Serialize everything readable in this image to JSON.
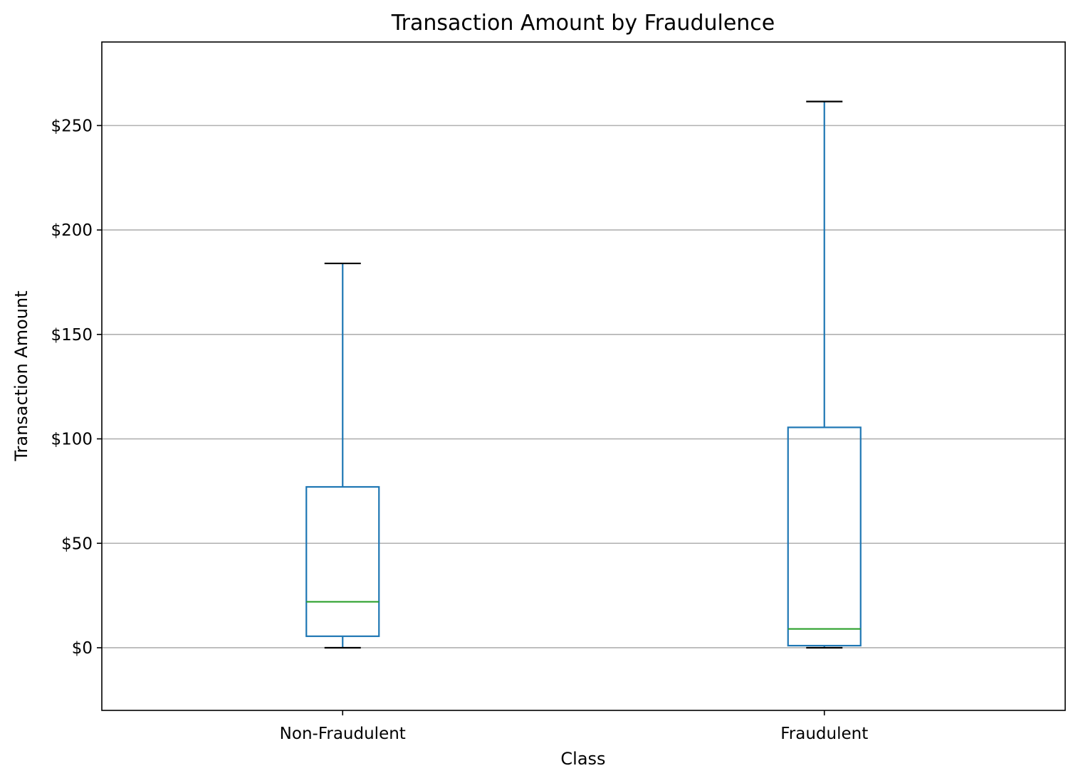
{
  "chart_data": {
    "type": "box",
    "title": "Transaction Amount by Fraudulence",
    "xlabel": "Class",
    "ylabel": "Transaction Amount",
    "categories": [
      "Non-Fraudulent",
      "Fraudulent"
    ],
    "boxes": [
      {
        "category": "Non-Fraudulent",
        "whisker_low": 0,
        "q1": 5.5,
        "median": 22,
        "q3": 77,
        "whisker_high": 184
      },
      {
        "category": "Fraudulent",
        "whisker_low": 0,
        "q1": 1,
        "median": 9,
        "q3": 105.5,
        "whisker_high": 261.5
      }
    ],
    "ylim": [
      -30,
      290
    ],
    "yticks": [
      0,
      50,
      100,
      150,
      200,
      250
    ],
    "ytick_labels": [
      "$0",
      "$50",
      "$100",
      "$150",
      "$200",
      "$250"
    ],
    "grid": "horizontal",
    "legend": "none",
    "colors": {
      "box": "#1f77b4",
      "median": "#2ca02c",
      "cap": "#000000",
      "grid": "#b0b0b0"
    }
  }
}
